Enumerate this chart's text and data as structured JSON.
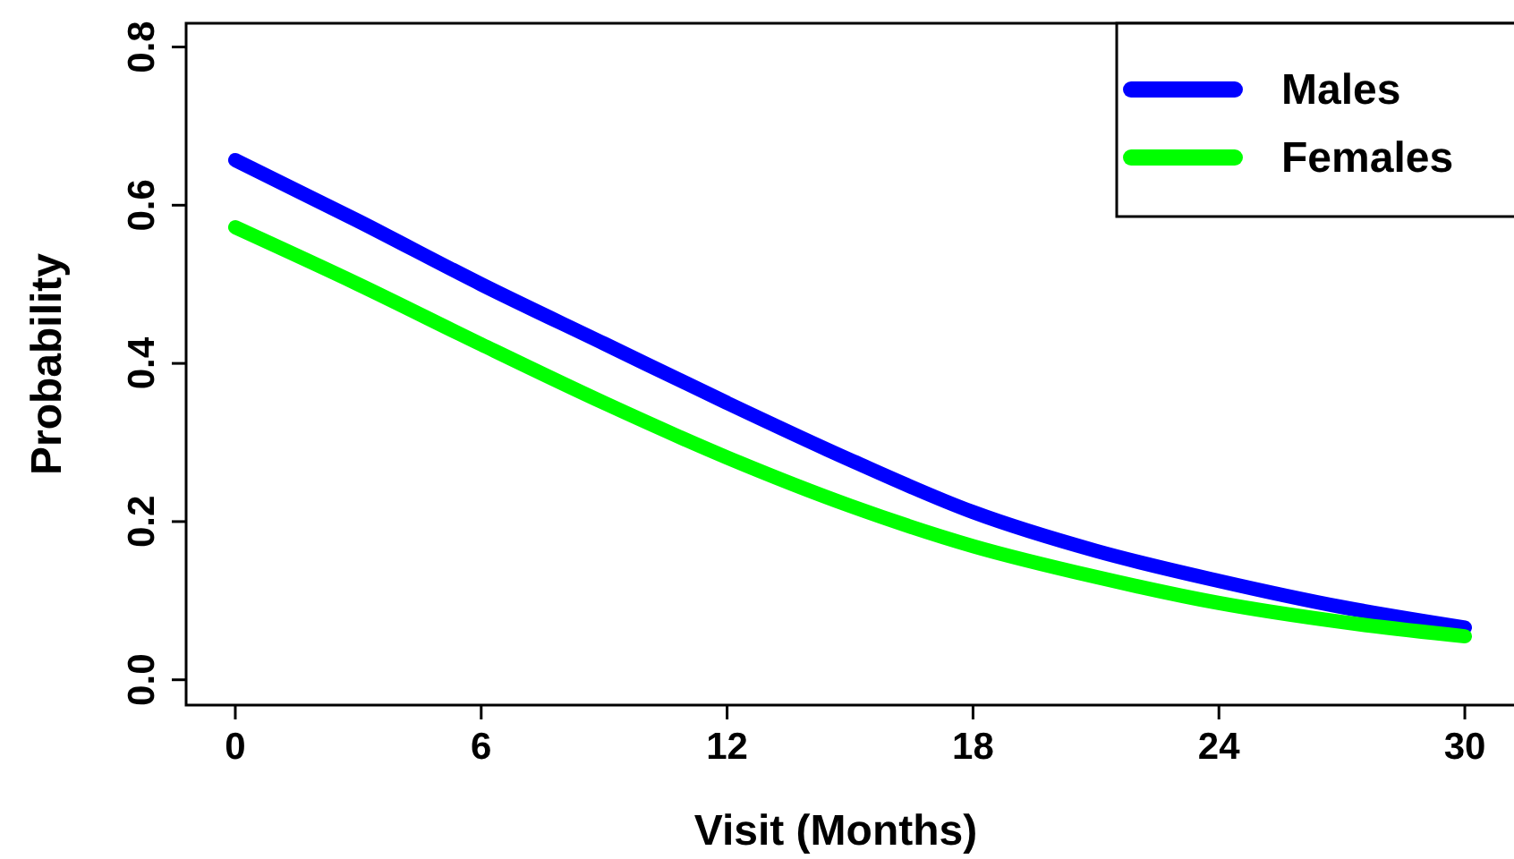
{
  "chart_data": {
    "type": "line",
    "xlabel": "Visit (Months)",
    "ylabel": "Probability",
    "x": [
      0,
      3,
      6,
      9,
      12,
      15,
      18,
      21,
      24,
      27,
      30
    ],
    "series": [
      {
        "name": "Males",
        "color": "#0000ff",
        "values": [
          0.657,
          0.58,
          0.5,
          0.425,
          0.35,
          0.278,
          0.212,
          0.163,
          0.125,
          0.092,
          0.066
        ]
      },
      {
        "name": "Females",
        "color": "#00ff00",
        "values": [
          0.572,
          0.5,
          0.424,
          0.35,
          0.281,
          0.22,
          0.169,
          0.13,
          0.097,
          0.073,
          0.055
        ]
      }
    ],
    "xlim": [
      -1.2,
      31.2
    ],
    "ylim": [
      -0.032,
      0.83
    ],
    "xticks": [
      0,
      6,
      12,
      18,
      24,
      30
    ],
    "yticks": [
      {
        "value": 0,
        "label": "0.0"
      },
      0.2,
      0.4,
      0.6,
      0.8
    ],
    "grid": false,
    "legend": "top right",
    "marker": "none",
    "line_style": "solid"
  }
}
